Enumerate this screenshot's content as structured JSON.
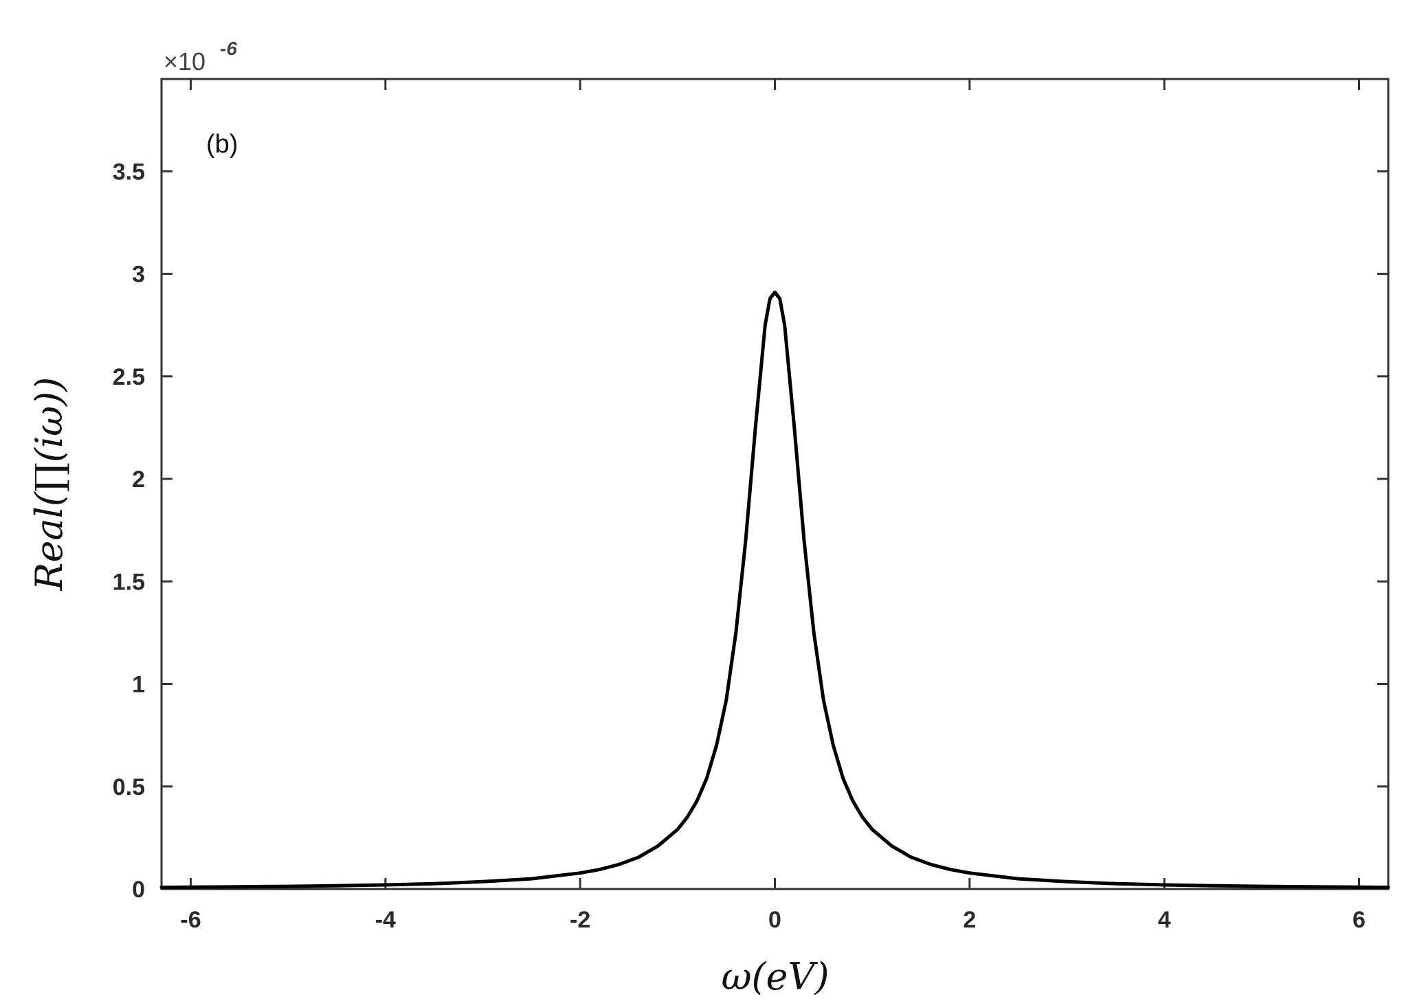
{
  "chart_data": {
    "type": "line",
    "panel_label": "(b)",
    "xlabel": "ω(eV)",
    "ylabel": "Real(∏(iω))",
    "y_multiplier": "×10",
    "y_exponent": "-6",
    "xlim": [
      -6.3,
      6.3
    ],
    "ylim": [
      0,
      3.95
    ],
    "xticks": [
      -6,
      -4,
      -2,
      0,
      2,
      4,
      6
    ],
    "xtick_labels": [
      "-6",
      "-4",
      "-2",
      "0",
      "2",
      "4",
      "6"
    ],
    "yticks": [
      0,
      0.5,
      1,
      1.5,
      2,
      2.5,
      3,
      3.5
    ],
    "ytick_labels": [
      "0",
      "0.5",
      "1",
      "1.5",
      "2",
      "2.5",
      "3",
      "3.5"
    ],
    "grid": false,
    "line_color": "#000000",
    "series": [
      {
        "x": [
          -6.3,
          -6.0,
          -5.5,
          -5.0,
          -4.5,
          -4.0,
          -3.5,
          -3.0,
          -2.5,
          -2.0,
          -1.8,
          -1.6,
          -1.4,
          -1.2,
          -1.0,
          -0.9,
          -0.8,
          -0.7,
          -0.6,
          -0.5,
          -0.4,
          -0.3,
          -0.2,
          -0.1,
          -0.05,
          0.0,
          0.05,
          0.1,
          0.2,
          0.3,
          0.4,
          0.5,
          0.6,
          0.7,
          0.8,
          0.9,
          1.0,
          1.2,
          1.4,
          1.6,
          1.8,
          2.0,
          2.5,
          3.0,
          3.5,
          4.0,
          4.5,
          5.0,
          5.5,
          6.0,
          6.3
        ],
        "y": [
          0.008,
          0.009,
          0.011,
          0.013,
          0.016,
          0.02,
          0.026,
          0.036,
          0.05,
          0.078,
          0.095,
          0.12,
          0.155,
          0.21,
          0.29,
          0.35,
          0.43,
          0.54,
          0.7,
          0.92,
          1.25,
          1.7,
          2.25,
          2.75,
          2.88,
          2.91,
          2.88,
          2.75,
          2.25,
          1.7,
          1.25,
          0.92,
          0.7,
          0.54,
          0.43,
          0.35,
          0.29,
          0.21,
          0.155,
          0.12,
          0.095,
          0.078,
          0.05,
          0.036,
          0.026,
          0.02,
          0.016,
          0.013,
          0.011,
          0.009,
          0.008
        ]
      }
    ]
  }
}
